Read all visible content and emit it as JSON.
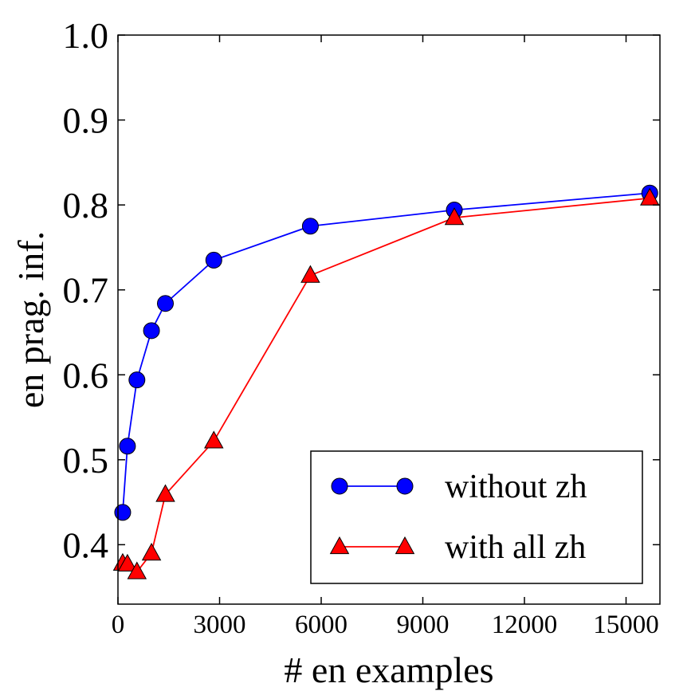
{
  "chart_data": {
    "type": "line",
    "title": "",
    "xlabel": "# en examples",
    "ylabel": "en prag. inf.",
    "xlim": [
      0,
      16000
    ],
    "ylim": [
      0.33,
      1.0
    ],
    "xticks": [
      0,
      3000,
      6000,
      9000,
      12000,
      15000
    ],
    "xtick_labels": [
      "0",
      "3000",
      "6000",
      "9000",
      "12000",
      "15000"
    ],
    "yticks": [
      0.4,
      0.5,
      0.6,
      0.7,
      0.8,
      0.9,
      1.0
    ],
    "ytick_labels": [
      "0.4",
      "0.5",
      "0.6",
      "0.7",
      "0.8",
      "0.9",
      "1.0"
    ],
    "grid": false,
    "legend_position": "lower-right",
    "series": [
      {
        "name": "without zh",
        "color": "#0000ff",
        "marker": "circle",
        "x": [
          140,
          280,
          560,
          990,
          1400,
          2830,
          5680,
          9930,
          15700
        ],
        "y": [
          0.438,
          0.516,
          0.594,
          0.652,
          0.684,
          0.735,
          0.775,
          0.794,
          0.814
        ]
      },
      {
        "name": "with all zh",
        "color": "#ff0000",
        "marker": "triangle",
        "x": [
          140,
          280,
          560,
          990,
          1400,
          2830,
          5680,
          9930,
          15700
        ],
        "y": [
          0.378,
          0.377,
          0.368,
          0.39,
          0.459,
          0.522,
          0.717,
          0.785,
          0.808
        ]
      }
    ]
  }
}
